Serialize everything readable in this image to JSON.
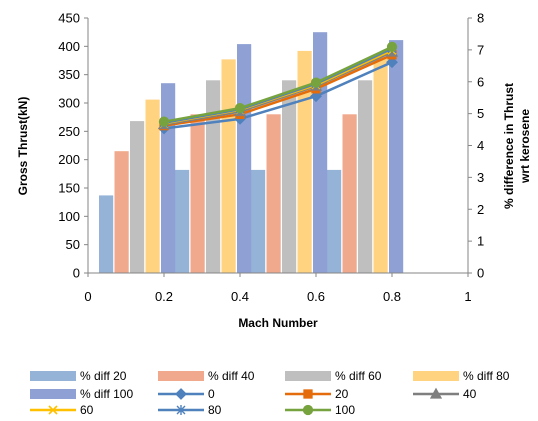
{
  "chart_data": {
    "type": "bar",
    "title": "",
    "xlabel": "Mach Number",
    "ylabel": "Gross Thrust(kN)",
    "y2label_lines": [
      "% difference in Thrust",
      "wrt kerosene"
    ],
    "xlim": [
      0,
      1
    ],
    "ylim": [
      0,
      450
    ],
    "y2lim": [
      0,
      8
    ],
    "x_ticks": [
      "0",
      "0.2",
      "0.4",
      "0.6",
      "0.8",
      "1"
    ],
    "y_ticks": [
      "0",
      "50",
      "100",
      "150",
      "200",
      "250",
      "300",
      "350",
      "400",
      "450"
    ],
    "y2_ticks": [
      "0",
      "1",
      "2",
      "3",
      "4",
      "5",
      "6",
      "7",
      "8"
    ],
    "grid": false,
    "legend_position": "bottom",
    "bar_groups_x": [
      0.2,
      0.4,
      0.6,
      0.8
    ],
    "bar_series": [
      {
        "name": "% diff 20",
        "color": "#95b3d7",
        "values": [
          137,
          182,
          182,
          182
        ]
      },
      {
        "name": "% diff 40",
        "color": "#f0a98c",
        "values": [
          215,
          280,
          280,
          280
        ]
      },
      {
        "name": "% diff 60",
        "color": "#bfbfbf",
        "values": [
          268,
          340,
          340,
          340
        ]
      },
      {
        "name": "% diff 80",
        "color": "#ffd37f",
        "values": [
          306,
          377,
          392,
          381
        ]
      },
      {
        "name": "% diff 100",
        "color": "#8ea0d4",
        "values": [
          335,
          404,
          425,
          411
        ]
      }
    ],
    "line_x": [
      0.2,
      0.4,
      0.6,
      0.8
    ],
    "line_series": [
      {
        "name": "0",
        "color": "#4f81bd",
        "marker": "diamond",
        "values": [
          255,
          272,
          312,
          372
        ]
      },
      {
        "name": "20",
        "color": "#e46c0a",
        "marker": "square",
        "values": [
          260,
          280,
          325,
          385
        ]
      },
      {
        "name": "40",
        "color": "#7f7f7f",
        "marker": "triangle",
        "values": [
          262,
          285,
          330,
          390
        ]
      },
      {
        "name": "60",
        "color": "#ffc000",
        "marker": "x",
        "values": [
          264,
          288,
          332,
          393
        ]
      },
      {
        "name": "80",
        "color": "#4f81bd",
        "marker": "star",
        "values": [
          265,
          289,
          334,
          396
        ]
      },
      {
        "name": "100",
        "color": "#77a33f",
        "marker": "circle",
        "values": [
          267,
          291,
          336,
          399
        ]
      }
    ]
  }
}
